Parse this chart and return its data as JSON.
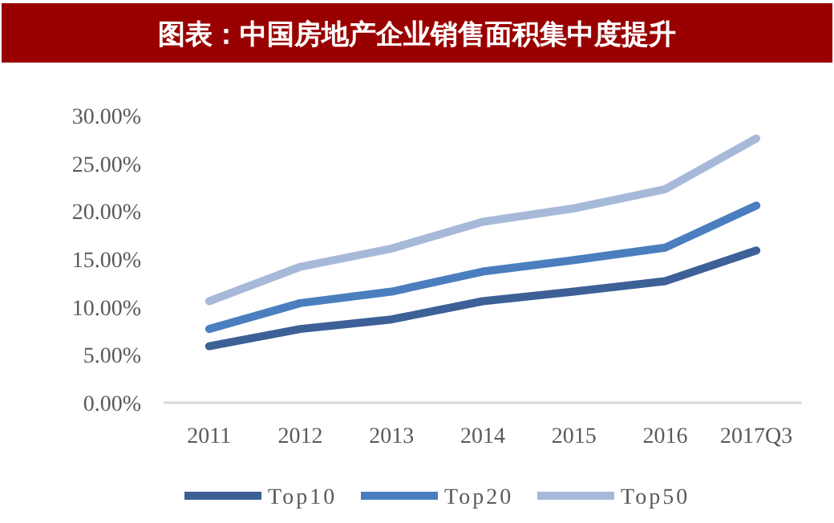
{
  "chart_data": {
    "type": "line",
    "title": "图表：中国房地产企业销售面积集中度提升",
    "categories": [
      "2011",
      "2012",
      "2013",
      "2014",
      "2015",
      "2016",
      "2017Q3"
    ],
    "series": [
      {
        "name": "Top10",
        "color": "#3d6096",
        "values": [
          5.9,
          7.7,
          8.7,
          10.6,
          11.6,
          12.7,
          15.9
        ]
      },
      {
        "name": "Top20",
        "color": "#4a7ebf",
        "values": [
          7.7,
          10.4,
          11.6,
          13.7,
          14.9,
          16.2,
          20.6
        ]
      },
      {
        "name": "Top50",
        "color": "#a7b9d9",
        "values": [
          10.6,
          14.2,
          16.1,
          18.9,
          20.3,
          22.3,
          27.6
        ]
      }
    ],
    "ylim": [
      0,
      30
    ],
    "yticks": [
      {
        "value": 0,
        "label": "0.00%"
      },
      {
        "value": 5,
        "label": "5.00%"
      },
      {
        "value": 10,
        "label": "10.00%"
      },
      {
        "value": 15,
        "label": "15.00%"
      },
      {
        "value": 20,
        "label": "20.00%"
      },
      {
        "value": 25,
        "label": "25.00%"
      },
      {
        "value": 30,
        "label": "30.00%"
      }
    ],
    "grid": false,
    "legend": "bottom",
    "marker": "none",
    "line_style": "solid"
  }
}
